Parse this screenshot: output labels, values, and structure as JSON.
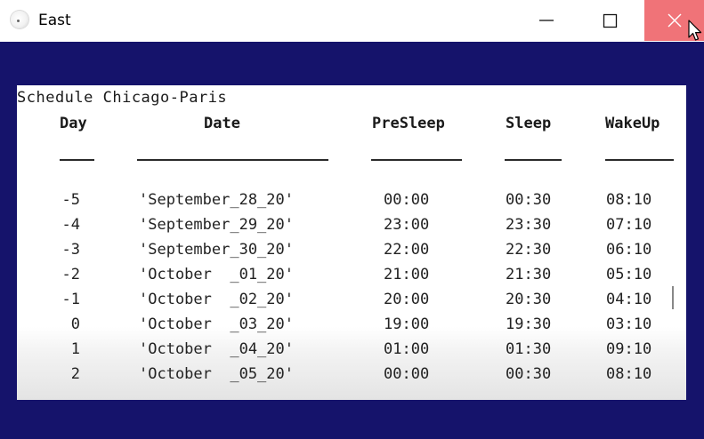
{
  "window": {
    "title": "East"
  },
  "console": {
    "heading": "Schedule Chicago-Paris",
    "columns": {
      "day": "Day",
      "date": "Date",
      "presleep": "PreSleep",
      "sleep": "Sleep",
      "wakeup": "WakeUp"
    },
    "rows": [
      {
        "day": "-5",
        "date": "'September_28_20'",
        "presleep": "00:00",
        "sleep": "00:30",
        "wakeup": "08:10"
      },
      {
        "day": "-4",
        "date": "'September_29_20'",
        "presleep": "23:00",
        "sleep": "23:30",
        "wakeup": "07:10"
      },
      {
        "day": "-3",
        "date": "'September_30_20'",
        "presleep": "22:00",
        "sleep": "22:30",
        "wakeup": "06:10"
      },
      {
        "day": "-2",
        "date": "'October  _01_20'",
        "presleep": "21:00",
        "sleep": "21:30",
        "wakeup": "05:10"
      },
      {
        "day": "-1",
        "date": "'October  _02_20'",
        "presleep": "20:00",
        "sleep": "20:30",
        "wakeup": "04:10"
      },
      {
        "day": "0",
        "date": "'October  _03_20'",
        "presleep": "19:00",
        "sleep": "19:30",
        "wakeup": "03:10"
      },
      {
        "day": "1",
        "date": "'October  _04_20'",
        "presleep": "01:00",
        "sleep": "01:30",
        "wakeup": "09:10"
      },
      {
        "day": "2",
        "date": "'October  _05_20'",
        "presleep": "00:00",
        "sleep": "00:30",
        "wakeup": "08:10"
      }
    ]
  },
  "colors": {
    "background": "#15136b",
    "close_hover": "#f07378",
    "console_bg": "#ffffff"
  },
  "icons": {
    "app": "app-icon",
    "minimize": "minimize-icon",
    "maximize": "maximize-icon",
    "close": "close-icon",
    "cursor": "mouse-cursor-icon"
  }
}
